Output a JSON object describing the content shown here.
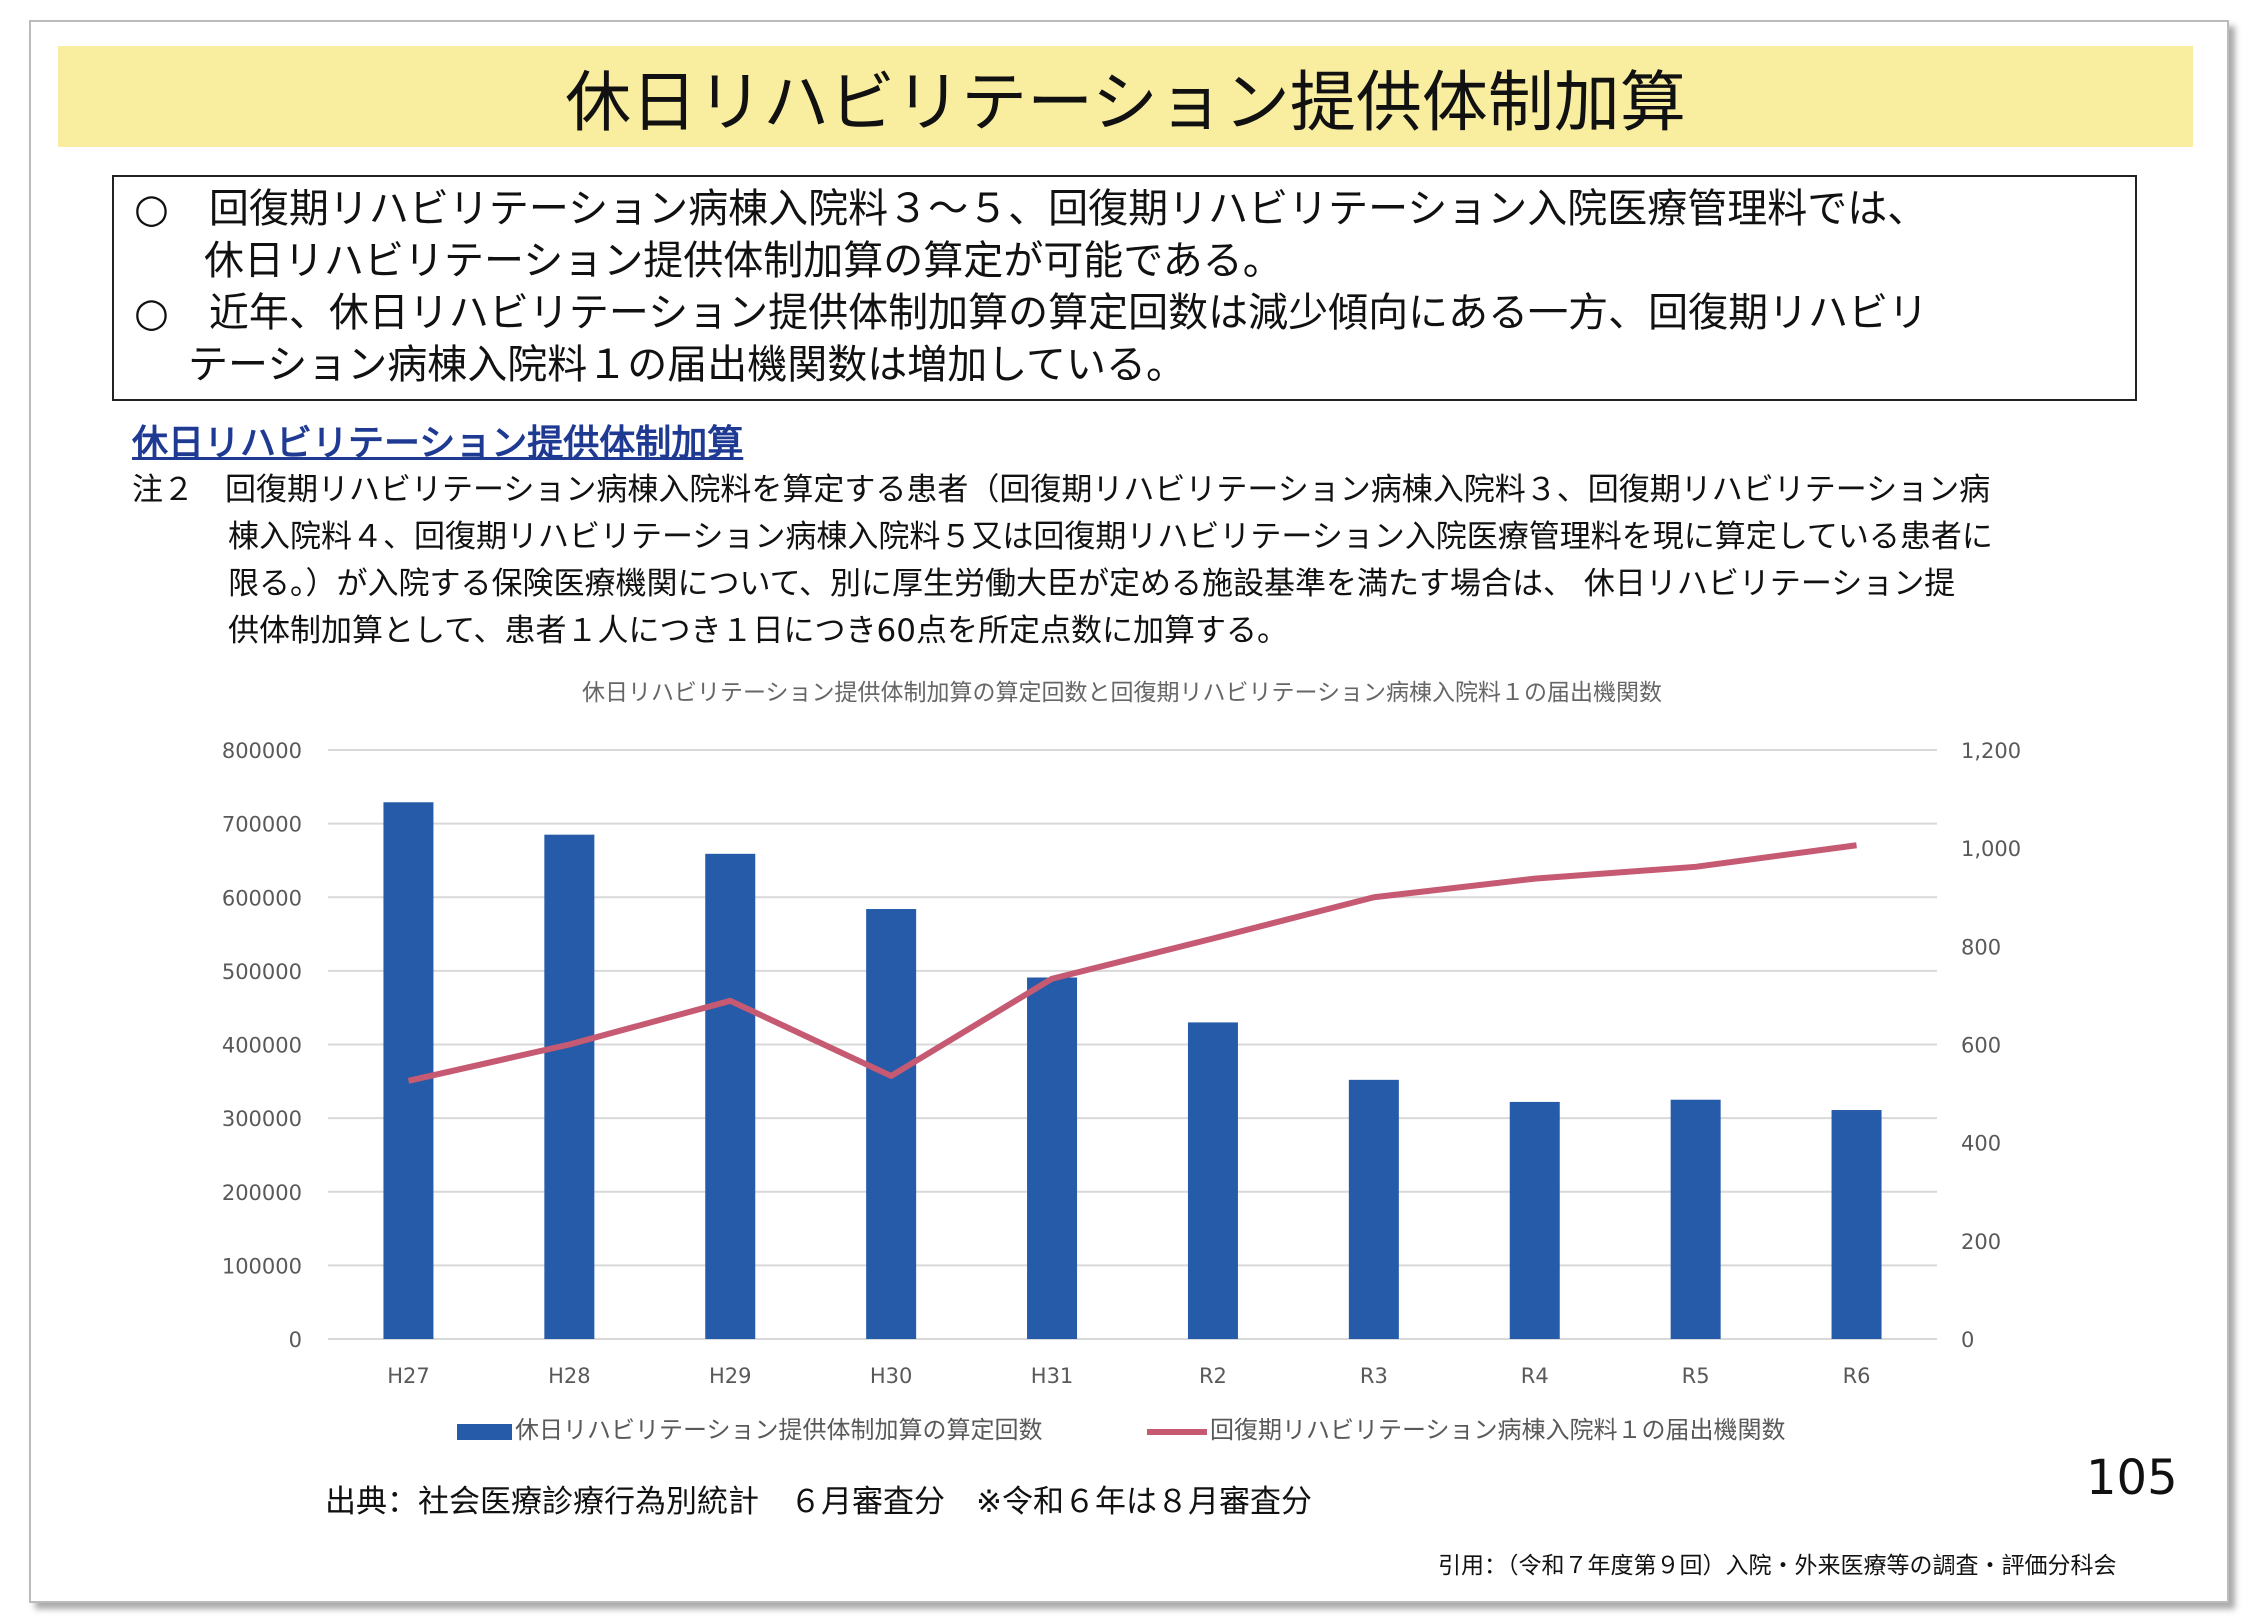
{
  "title": "休日リハビリテーション提供体制加算",
  "summary": [
    "○　回復期リハビリテーション病棟入院料３～５、回復期リハビリテーション入院医療管理料では、",
    "休日リハビリテーション提供体制加算の算定が可能である。",
    "○　近年、休日リハビリテーション提供体制加算の算定回数は減少傾向にある一方、回復期リハビリ",
    "テーション病棟入院料１の届出機関数は増加している。"
  ],
  "subheading": "休日リハビリテーション提供体制加算",
  "note": [
    "注２　回復期リハビリテーション病棟入院料を算定する患者（回復期リハビリテーション病棟入院料３、回復期リハビリテーション病",
    "棟入院料４、回復期リハビリテーション病棟入院料５又は回復期リハビリテーション入院医療管理料を現に算定している患者に",
    "限る。）が入院する保険医療機関について、別に厚生労働大臣が定める施設基準を満たす場合は、 休日リハビリテーション提",
    "供体制加算として、患者１人につき１日につき60点を所定点数に加算する。"
  ],
  "chart_data": {
    "type": "bar",
    "title": "休日リハビリテーション提供体制加算の算定回数と回復期リハビリテーション病棟入院料１の届出機関数",
    "categories": [
      "H27",
      "H28",
      "H29",
      "H30",
      "H31",
      "R2",
      "R3",
      "R4",
      "R5",
      "R6"
    ],
    "series": [
      {
        "name": "休日リハビリテーション提供体制加算の算定回数",
        "type": "bar",
        "axis": "left",
        "color": "#255ba8",
        "values": [
          729000,
          685000,
          659000,
          584000,
          491000,
          430000,
          352000,
          322000,
          325000,
          311000
        ]
      },
      {
        "name": "回復期リハビリテーション病棟入院料１の届出機関数",
        "type": "line",
        "axis": "right",
        "color": "#c55a72",
        "values": [
          526,
          600,
          689,
          536,
          734,
          816,
          900,
          938,
          962,
          1006
        ]
      }
    ],
    "ylim": [
      0,
      800000
    ],
    "yticks": [
      "0",
      "100000",
      "200000",
      "300000",
      "400000",
      "500000",
      "600000",
      "700000",
      "800000"
    ],
    "y2lim": [
      0,
      1200
    ],
    "y2ticks": [
      "0",
      "200",
      "400",
      "600",
      "800",
      "1,000",
      "1,200"
    ],
    "legend": "bottom",
    "grid": true
  },
  "source": "出典：社会医療診療行為別統計　６月審査分　※令和６年は８月審査分",
  "page_number": "105",
  "citation": "引用：（令和７年度第９回）入院・外来医療等の調査・評価分科会"
}
